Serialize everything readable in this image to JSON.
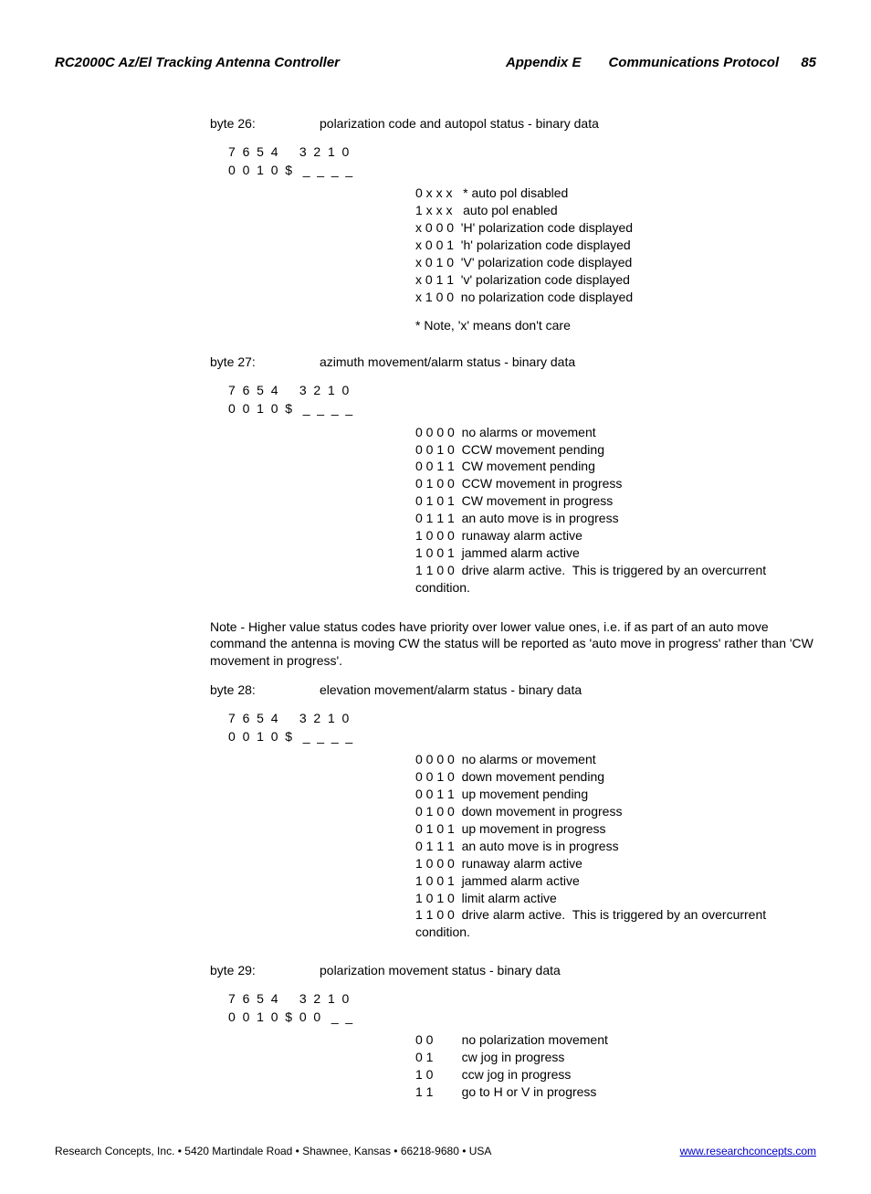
{
  "header": {
    "title_left": "RC2000C Az/El Tracking Antenna Controller",
    "title_center": "Appendix E",
    "title_right": "Communications Protocol",
    "page_number": "85"
  },
  "bytes": [
    {
      "label": "byte 26:",
      "desc": "polarization code and autopol status - binary data",
      "bit_header": "7  6  5  4      3  2  1  0",
      "bit_pattern": "0  0  1  0  $   _  _  _  _",
      "values": [
        "0 x x x   * auto pol disabled",
        "1 x x x   auto pol enabled",
        "x 0 0 0  'H' polarization code displayed",
        "x 0 0 1  'h' polarization code displayed",
        "x 0 1 0  'V' polarization code displayed",
        "x 0 1 1  'v' polarization code displayed",
        "x 1 0 0  no polarization code displayed"
      ],
      "footnote": "* Note, 'x' means don't care"
    },
    {
      "label": "byte 27:",
      "desc": "azimuth movement/alarm status - binary data",
      "bit_header": "7  6  5  4      3  2  1  0",
      "bit_pattern": "0  0  1  0  $   _  _  _  _",
      "values": [
        "0 0 0 0  no alarms or movement",
        "0 0 1 0  CCW movement pending",
        "0 0 1 1  CW movement pending",
        "0 1 0 0  CCW movement in progress",
        "0 1 0 1  CW movement in progress",
        "0 1 1 1  an auto move is in progress",
        "1 0 0 0  runaway alarm active",
        "1 0 0 1  jammed alarm active",
        "1 1 0 0  drive alarm active.  This is triggered by an overcurrent condition."
      ],
      "note_after": "Note - Higher value status codes have priority over lower value ones, i.e. if as part of an auto move command the antenna is moving CW the status will be reported as 'auto move in progress' rather than 'CW movement in progress'."
    },
    {
      "label": "byte 28:",
      "desc": "elevation movement/alarm status - binary data",
      "bit_header": "7  6  5  4      3  2  1  0",
      "bit_pattern": "0  0  1  0  $   _  _  _  _",
      "values": [
        "0 0 0 0  no alarms or movement",
        "0 0 1 0  down movement pending",
        "0 0 1 1  up movement pending",
        "0 1 0 0  down movement in progress",
        "0 1 0 1  up movement in progress",
        "0 1 1 1  an auto move is in progress",
        "1 0 0 0  runaway alarm active",
        "1 0 0 1  jammed alarm active",
        "1 0 1 0  limit alarm active",
        "1 1 0 0  drive alarm active.  This is triggered by an overcurrent condition."
      ]
    },
    {
      "label": "byte 29:",
      "desc": "polarization movement status - binary data",
      "bit_header": "7  6  5  4      3  2  1  0",
      "bit_pattern": "0  0  1  0  $  0  0   _  _",
      "values": [
        "0 0        no polarization movement",
        "0 1        cw jog in progress",
        "1 0        ccw jog in progress",
        "1 1        go to H or V in progress"
      ]
    }
  ],
  "footer": {
    "left": "Research Concepts, Inc. • 5420 Martindale Road • Shawnee, Kansas • 66218-9680 • USA",
    "link": "www.researchconcepts.com"
  }
}
